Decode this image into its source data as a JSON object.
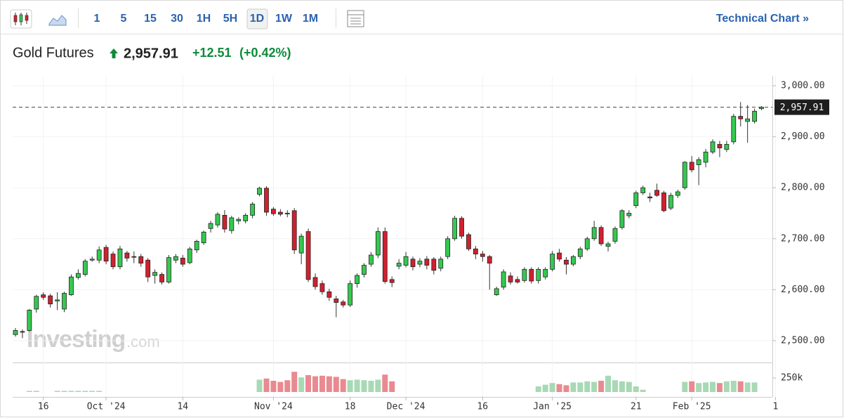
{
  "toolbar": {
    "intervals": [
      "1",
      "5",
      "15",
      "30",
      "1H",
      "5H",
      "1D",
      "1W",
      "1M"
    ],
    "link": "Technical Chart »"
  },
  "header": {
    "title": "Gold Futures",
    "price": "2,957.91",
    "change": "+12.51",
    "change_pct": "(+0.42%)"
  },
  "watermark": {
    "name": "Investing",
    "suffix": ".com"
  },
  "chart_data": {
    "type": "candlestick",
    "up_color": "#34c94f",
    "down_color": "#d1202f",
    "volume_up_color": "#a8d9b5",
    "volume_down_color": "#e98a90",
    "grid": true,
    "categories": [
      null,
      null,
      null,
      null,
      "16",
      null,
      null,
      null,
      null,
      null,
      null,
      null,
      null,
      "Oct '24",
      null,
      null,
      null,
      null,
      null,
      null,
      null,
      null,
      null,
      null,
      "14",
      null,
      null,
      null,
      null,
      null,
      null,
      null,
      null,
      null,
      null,
      null,
      null,
      "Nov '24",
      null,
      null,
      null,
      null,
      null,
      null,
      null,
      null,
      null,
      null,
      "18",
      null,
      null,
      null,
      null,
      null,
      null,
      null,
      "Dec '24",
      null,
      null,
      null,
      null,
      null,
      null,
      null,
      null,
      null,
      null,
      "16",
      null,
      null,
      null,
      null,
      null,
      null,
      null,
      null,
      null,
      "Jan '25",
      null,
      null,
      null,
      null,
      null,
      null,
      null,
      null,
      null,
      null,
      null,
      "21",
      null,
      null,
      null,
      null,
      null,
      null,
      null,
      "Feb '25",
      null,
      null,
      null,
      null,
      null,
      null,
      null,
      null,
      null,
      null,
      null,
      "1"
    ],
    "open": [
      2512,
      2518,
      2520,
      2562,
      2590,
      2588,
      2578,
      2562,
      2590,
      2624,
      2630,
      2658,
      2658,
      2683,
      2670,
      2645,
      2672,
      2665,
      2665,
      2658,
      2628,
      2630,
      2615,
      2658,
      2662,
      2653,
      2678,
      2692,
      2720,
      2727,
      2746,
      2716,
      2735,
      2735,
      2746,
      2787,
      2799,
      2758,
      2752,
      2750,
      2755,
      2672,
      2714,
      2624,
      2612,
      2596,
      2582,
      2576,
      2570,
      2612,
      2630,
      2650,
      2668,
      2714,
      2620,
      2646,
      2648,
      2660,
      2650,
      2660,
      2660,
      2642,
      2665,
      2700,
      2740,
      2708,
      2680,
      2670,
      2665,
      2590,
      2605,
      2627,
      2620,
      2618,
      2640,
      2618,
      2625,
      2640,
      2672,
      2658,
      2650,
      2665,
      2680,
      2700,
      2722,
      2685,
      2695,
      2722,
      2745,
      2765,
      2790,
      2782,
      2795,
      2790,
      2760,
      2785,
      2800,
      2850,
      2845,
      2850,
      2870,
      2885,
      2875,
      2890,
      2940,
      2930,
      2930,
      2955,
      null,
      null
    ],
    "high": [
      2525,
      2522,
      2562,
      2590,
      2595,
      2592,
      2595,
      2596,
      2630,
      2640,
      2660,
      2665,
      2685,
      2688,
      2675,
      2686,
      2676,
      2675,
      2670,
      2662,
      2640,
      2634,
      2668,
      2670,
      2668,
      2684,
      2698,
      2716,
      2735,
      2752,
      2756,
      2745,
      2742,
      2750,
      2772,
      2802,
      2803,
      2762,
      2758,
      2756,
      2760,
      2710,
      2720,
      2632,
      2618,
      2602,
      2588,
      2580,
      2618,
      2632,
      2652,
      2674,
      2722,
      2722,
      2626,
      2660,
      2674,
      2665,
      2662,
      2666,
      2664,
      2665,
      2705,
      2745,
      2744,
      2712,
      2686,
      2676,
      2668,
      2606,
      2640,
      2634,
      2626,
      2644,
      2644,
      2644,
      2644,
      2676,
      2680,
      2664,
      2668,
      2684,
      2704,
      2735,
      2726,
      2694,
      2724,
      2758,
      2756,
      2794,
      2804,
      2790,
      2808,
      2794,
      2790,
      2796,
      2852,
      2862,
      2860,
      2876,
      2895,
      2892,
      2892,
      2945,
      2968,
      2962,
      2955,
      2960,
      null,
      null
    ],
    "low": [
      2508,
      2505,
      2518,
      2555,
      2580,
      2565,
      2560,
      2556,
      2588,
      2620,
      2626,
      2655,
      2652,
      2650,
      2640,
      2640,
      2655,
      2652,
      2645,
      2615,
      2612,
      2610,
      2612,
      2652,
      2645,
      2650,
      2672,
      2688,
      2712,
      2722,
      2712,
      2710,
      2728,
      2730,
      2740,
      2783,
      2745,
      2745,
      2744,
      2742,
      2670,
      2650,
      2615,
      2600,
      2590,
      2578,
      2546,
      2565,
      2566,
      2604,
      2624,
      2645,
      2662,
      2612,
      2605,
      2640,
      2644,
      2638,
      2644,
      2640,
      2630,
      2636,
      2660,
      2696,
      2700,
      2676,
      2660,
      2655,
      2600,
      2588,
      2600,
      2610,
      2612,
      2614,
      2612,
      2612,
      2620,
      2636,
      2655,
      2630,
      2646,
      2660,
      2676,
      2696,
      2686,
      2675,
      2690,
      2718,
      2740,
      2760,
      2786,
      2772,
      2782,
      2752,
      2756,
      2780,
      2796,
      2830,
      2805,
      2840,
      2866,
      2860,
      2870,
      2885,
      2920,
      2888,
      2926,
      2952,
      null,
      null
    ],
    "close": [
      2520,
      2517,
      2560,
      2587,
      2585,
      2572,
      2580,
      2593,
      2625,
      2632,
      2656,
      2660,
      2678,
      2656,
      2645,
      2680,
      2662,
      2664,
      2652,
      2625,
      2634,
      2615,
      2663,
      2665,
      2650,
      2680,
      2695,
      2713,
      2730,
      2748,
      2719,
      2741,
      2738,
      2746,
      2768,
      2799,
      2752,
      2749,
      2748,
      2749,
      2678,
      2705,
      2620,
      2606,
      2596,
      2585,
      2575,
      2570,
      2612,
      2628,
      2648,
      2668,
      2714,
      2616,
      2614,
      2652,
      2665,
      2645,
      2656,
      2648,
      2638,
      2660,
      2700,
      2740,
      2705,
      2680,
      2670,
      2665,
      2652,
      2602,
      2635,
      2615,
      2615,
      2640,
      2617,
      2640,
      2640,
      2670,
      2660,
      2650,
      2665,
      2680,
      2700,
      2722,
      2690,
      2690,
      2720,
      2755,
      2750,
      2790,
      2800,
      2780,
      2785,
      2755,
      2785,
      2792,
      2850,
      2835,
      2855,
      2870,
      2890,
      2878,
      2885,
      2940,
      2935,
      2935,
      2950,
      2957.91,
      null,
      null
    ],
    "volume": [
      null,
      null,
      20000,
      20000,
      null,
      null,
      20000,
      20000,
      20000,
      20000,
      20000,
      20000,
      20000,
      null,
      null,
      null,
      null,
      null,
      null,
      null,
      null,
      null,
      null,
      null,
      null,
      null,
      null,
      null,
      null,
      null,
      null,
      null,
      null,
      null,
      null,
      220000,
      240000,
      200000,
      180000,
      210000,
      360000,
      260000,
      300000,
      280000,
      290000,
      280000,
      270000,
      230000,
      210000,
      220000,
      210000,
      200000,
      220000,
      310000,
      190000,
      null,
      null,
      null,
      null,
      null,
      null,
      null,
      null,
      null,
      null,
      null,
      null,
      null,
      null,
      null,
      null,
      null,
      null,
      null,
      null,
      100000,
      130000,
      160000,
      140000,
      120000,
      170000,
      170000,
      190000,
      180000,
      200000,
      290000,
      210000,
      190000,
      180000,
      100000,
      40000,
      null,
      null,
      null,
      null,
      null,
      180000,
      190000,
      160000,
      170000,
      180000,
      160000,
      190000,
      200000,
      190000,
      170000,
      170000,
      null,
      null,
      null
    ],
    "ylim": [
      2460,
      3020
    ],
    "yticks": [
      {
        "value": 2500,
        "label": "2,500.00"
      },
      {
        "value": 2600,
        "label": "2,600.00"
      },
      {
        "value": 2700,
        "label": "2,700.00"
      },
      {
        "value": 2800,
        "label": "2,800.00"
      },
      {
        "value": 2900,
        "label": "2,900.00"
      },
      {
        "value": 3000,
        "label": "3,000.00"
      }
    ],
    "vlim": [
      0,
      500000
    ],
    "vticks": [
      {
        "value": 250000,
        "label": "250k"
      }
    ],
    "last": {
      "value": 2957.91,
      "label": "2,957.91"
    }
  }
}
